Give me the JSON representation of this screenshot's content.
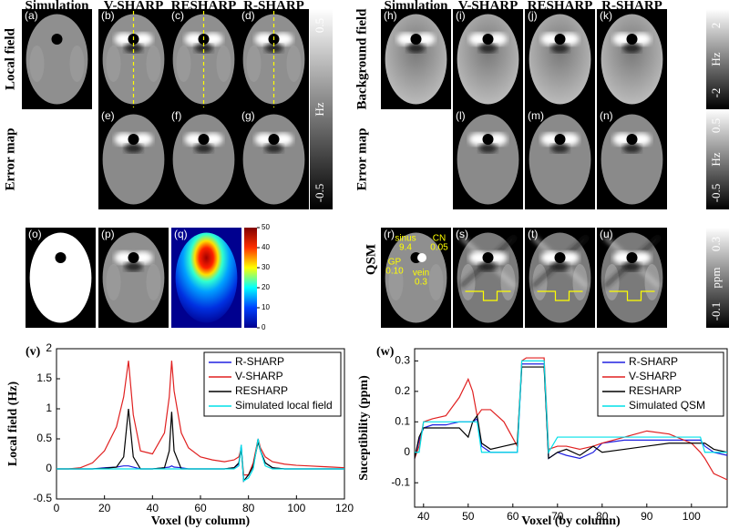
{
  "figure": {
    "left_headers": [
      "Simulation",
      "V-SHARP",
      "RESHARP",
      "R-SHARP"
    ],
    "right_headers": [
      "Simulation",
      "V-SHARP",
      "RESHARP",
      "R-SHARP"
    ],
    "left_row_labels": [
      "Local field",
      "Error  map"
    ],
    "right_row_labels": [
      "Background field",
      "Error  map"
    ],
    "qsm_label": "QSM",
    "panel_letters": [
      "(a)",
      "(b)",
      "(c)",
      "(d)",
      "(e)",
      "(f)",
      "(g)",
      "(h)",
      "(i)",
      "(j)",
      "(k)",
      "(l)",
      "(m)",
      "(n)",
      "(o)",
      "(p)",
      "(q)",
      "(r)",
      "(s)",
      "(t)",
      "(u)"
    ],
    "colorbars": [
      {
        "unit": "Hz",
        "lim": [
          -0.5,
          0.5
        ],
        "ticks": [
          0.5,
          -0.5
        ]
      },
      {
        "unit": "Hz",
        "lim": [
          -2,
          2
        ],
        "ticks": [
          2,
          -2
        ]
      },
      {
        "unit": "Hz",
        "lim": [
          -0.5,
          0.5
        ],
        "ticks": [
          0.5,
          -0.5
        ]
      },
      {
        "unit": "ppm",
        "lim": [
          -0.1,
          0.3
        ],
        "ticks": [
          0.3,
          -0.1
        ]
      }
    ],
    "jet_colorbar": {
      "lim": [
        0,
        50
      ],
      "ticks": [
        0,
        10,
        20,
        30,
        40,
        50
      ]
    },
    "qsm_annotations": [
      "sinus",
      "9.4",
      "CN",
      "0.05",
      "GP",
      "0.10",
      "vein",
      "0.3"
    ]
  },
  "chart_data": [
    {
      "type": "line",
      "panel": "(v)",
      "x_label": "Voxel (by column)",
      "y_label": "Local field (Hz)",
      "x": [
        0,
        5,
        10,
        15,
        20,
        25,
        28,
        30,
        32,
        35,
        40,
        45,
        47,
        48,
        49,
        52,
        55,
        60,
        65,
        70,
        74,
        76,
        77,
        78,
        80,
        82,
        84,
        85,
        87,
        90,
        95,
        100,
        105,
        110,
        115,
        120
      ],
      "series": [
        {
          "name": "R-SHARP",
          "color": "#2020e0",
          "values": [
            0,
            0,
            0,
            0,
            0.02,
            0.03,
            0.05,
            0.05,
            0.03,
            0,
            0,
            0.02,
            0.03,
            0.05,
            0.03,
            0.02,
            0,
            0,
            0,
            0,
            0.02,
            0.08,
            0.4,
            -0.2,
            -0.1,
            0.05,
            0.5,
            0.3,
            0.1,
            0.02,
            0,
            0,
            0,
            0,
            0,
            0
          ]
        },
        {
          "name": "V-SHARP",
          "color": "#e02020",
          "values": [
            0,
            0,
            0.02,
            0.1,
            0.3,
            0.7,
            1.2,
            1.8,
            0.9,
            0.3,
            0.25,
            0.6,
            1.2,
            1.8,
            1.3,
            0.6,
            0.35,
            0.2,
            0.15,
            0.12,
            0.15,
            0.2,
            0.35,
            -0.1,
            -0.1,
            0.1,
            0.5,
            0.35,
            0.2,
            0.12,
            0.08,
            0.06,
            0.05,
            0.04,
            0.03,
            0.02
          ]
        },
        {
          "name": "RESHARP",
          "color": "#000000",
          "values": [
            0,
            0,
            0,
            0,
            0.01,
            0.03,
            0.2,
            1.0,
            0.2,
            0,
            0,
            0.02,
            0.3,
            0.95,
            0.3,
            0,
            0,
            0,
            0,
            0,
            0.02,
            0.1,
            0.35,
            -0.2,
            -0.1,
            0.05,
            0.45,
            0.3,
            0.1,
            0.02,
            0,
            0,
            0,
            0,
            0,
            0
          ]
        },
        {
          "name": "Simulated local field",
          "color": "#00e0e8",
          "values": [
            0,
            0,
            0,
            0,
            0,
            0,
            0,
            0,
            0,
            0,
            0,
            0,
            0,
            0,
            0,
            0,
            0,
            0,
            0,
            0,
            0,
            0.05,
            0.4,
            -0.2,
            -0.15,
            0,
            0.5,
            0.3,
            0.05,
            0,
            0,
            0,
            0,
            0,
            0,
            0
          ]
        }
      ],
      "xlim": [
        0,
        120
      ],
      "xticks": [
        0,
        20,
        40,
        60,
        80,
        100,
        120
      ],
      "ylim": [
        -0.5,
        2
      ],
      "yticks": [
        -0.5,
        0,
        0.5,
        1,
        1.5,
        2
      ],
      "legend": "upper right"
    },
    {
      "type": "line",
      "panel": "(w)",
      "x_label": "Voxel (by column)",
      "y_label": "Suceptibility (ppm)",
      "x": [
        38,
        39,
        40,
        42,
        45,
        48,
        50,
        51,
        52,
        53,
        55,
        58,
        61,
        62,
        63,
        65,
        67,
        68,
        70,
        72,
        75,
        78,
        80,
        85,
        90,
        95,
        100,
        102,
        103,
        105,
        108
      ],
      "series": [
        {
          "name": "R-SHARP",
          "color": "#2020e0",
          "values": [
            -0.02,
            0.04,
            0.08,
            0.09,
            0.09,
            0.1,
            0.1,
            0.1,
            0.11,
            0.02,
            0,
            0,
            0,
            0.29,
            0.29,
            0.29,
            0.29,
            -0.02,
            0,
            -0.01,
            -0.02,
            0,
            0.03,
            0.04,
            0.04,
            0.04,
            0.04,
            0.04,
            0.02,
            0,
            -0.01
          ]
        },
        {
          "name": "V-SHARP",
          "color": "#e02020",
          "values": [
            -0.02,
            0.02,
            0.1,
            0.11,
            0.12,
            0.18,
            0.24,
            0.2,
            0.12,
            0.14,
            0.14,
            0.1,
            0.02,
            0.3,
            0.31,
            0.31,
            0.31,
            0.01,
            0.02,
            0.02,
            0.01,
            0.02,
            0.03,
            0.05,
            0.07,
            0.06,
            0.03,
            0,
            -0.02,
            -0.07,
            -0.09
          ]
        },
        {
          "name": "RESHARP",
          "color": "#000000",
          "values": [
            -0.02,
            0.05,
            0.08,
            0.08,
            0.08,
            0.08,
            0.05,
            0.1,
            0.12,
            0.03,
            0.01,
            0.02,
            0.03,
            0.28,
            0.28,
            0.28,
            0.28,
            -0.02,
            0,
            0.01,
            -0.01,
            0.02,
            0,
            0.01,
            0.02,
            0.03,
            0.03,
            0.03,
            0.03,
            0.01,
            0
          ]
        },
        {
          "name": "Simulated QSM",
          "color": "#00e0e8",
          "values": [
            0,
            0,
            0.1,
            0.1,
            0.1,
            0.1,
            0.1,
            0.1,
            0.1,
            0,
            0,
            0,
            0,
            0.3,
            0.3,
            0.3,
            0.3,
            0,
            0.05,
            0.05,
            0.05,
            0.05,
            0.05,
            0.05,
            0.05,
            0.05,
            0.05,
            0.05,
            0,
            0,
            0
          ]
        }
      ],
      "xlim": [
        38,
        108
      ],
      "xticks": [
        40,
        50,
        60,
        70,
        80,
        90,
        100
      ],
      "ylim": [
        -0.18,
        0.34
      ],
      "yticks": [
        -0.1,
        0,
        0.1,
        0.2,
        0.3
      ],
      "legend": "upper right"
    }
  ]
}
